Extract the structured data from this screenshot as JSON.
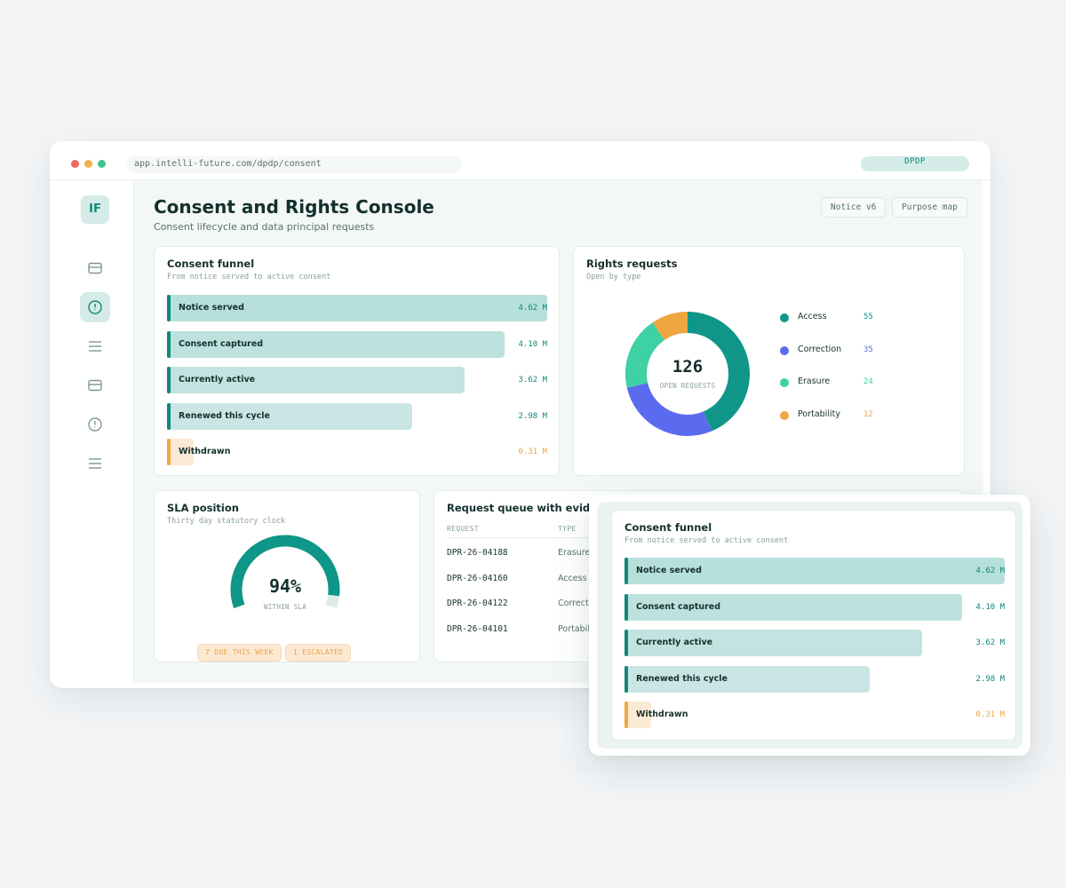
{
  "browser": {
    "url": "app.intelli-future.com/dpdp/consent",
    "badge": "DPDP"
  },
  "sidebar": {
    "logo": "IF",
    "items": [
      {
        "icon": "card-icon"
      },
      {
        "icon": "clock-icon",
        "active": true
      },
      {
        "icon": "list-icon"
      },
      {
        "icon": "card-icon"
      },
      {
        "icon": "clock-icon"
      },
      {
        "icon": "list-icon"
      }
    ]
  },
  "header": {
    "title": "Consent and Rights Console",
    "subtitle": "Consent lifecycle and data principal requests",
    "buttons": [
      "Notice v6",
      "Purpose map"
    ]
  },
  "funnel": {
    "title": "Consent funnel",
    "subtitle": "From notice served to active consent",
    "rows": [
      {
        "label": "Notice served",
        "value": "4.62 M",
        "fraction": 1.0
      },
      {
        "label": "Consent captured",
        "value": "4.10 M",
        "fraction": 0.888
      },
      {
        "label": "Currently active",
        "value": "3.62 M",
        "fraction": 0.783
      },
      {
        "label": "Renewed this cycle",
        "value": "2.98 M",
        "fraction": 0.645
      },
      {
        "label": "Withdrawn",
        "value": "0.31 M",
        "fraction": 0.067
      }
    ],
    "colors": {
      "teal": "#0f877a",
      "amber": "#f0a640"
    }
  },
  "rights": {
    "title": "Rights requests",
    "subtitle": "Open by type",
    "total": "126",
    "total_label": "OPEN REQUESTS",
    "items": [
      {
        "label": "Access",
        "value": "55",
        "color": "#0f9688"
      },
      {
        "label": "Correction",
        "value": "35",
        "color": "#5b6bf0"
      },
      {
        "label": "Erasure",
        "value": "24",
        "color": "#3dd1a3"
      },
      {
        "label": "Portability",
        "value": "12",
        "color": "#f0a640"
      }
    ]
  },
  "sla": {
    "title": "SLA position",
    "subtitle": "Thirty day statutory clock",
    "percent": "94%",
    "fraction": 0.94,
    "label": "WITHIN SLA",
    "chips": [
      "7 DUE THIS WEEK",
      "1 ESCALATED"
    ]
  },
  "queue": {
    "title": "Request queue with evide",
    "headers": [
      "REQUEST",
      "TYPE"
    ],
    "rows": [
      {
        "id": "DPR-26-04188",
        "type": "Erasure"
      },
      {
        "id": "DPR-26-04160",
        "type": "Access"
      },
      {
        "id": "DPR-26-04122",
        "type": "Correcti"
      },
      {
        "id": "DPR-26-04101",
        "type": "Portabil"
      }
    ]
  }
}
